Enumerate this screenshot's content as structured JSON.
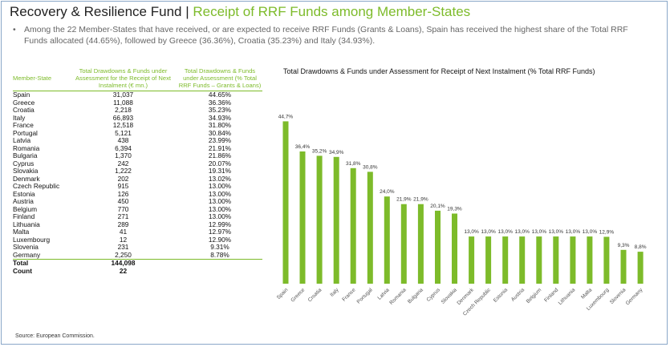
{
  "header": {
    "title_main": "Recovery & Resilience Fund",
    "title_separator": "|",
    "title_accent": "Receipt of RRF Funds among Member-States",
    "bullet": "Among the 22 Member-States that have received, or are expected to receive RRF Funds (Grants & Loans), Spain has received the highest share of the Total RRF Funds allocated (44.65%), followed by Greece (36.36%), Croatia (35.23%) and Italy (34.93%).",
    "accent_color": "#7dbb2a"
  },
  "table": {
    "headers": [
      "Member-State",
      "Total Drawdowns & Funds under Assessment for the Receipt of Next Instalment (€ mn.)",
      "Total Drawdowns & Funds under Assessment (% Total RRF Funds – Grants & Loans)"
    ],
    "rows": [
      [
        "Spain",
        "31,037",
        "44.65%"
      ],
      [
        "Greece",
        "11,088",
        "36.36%"
      ],
      [
        "Croatia",
        "2,218",
        "35.23%"
      ],
      [
        "Italy",
        "66,893",
        "34.93%"
      ],
      [
        "France",
        "12,518",
        "31.80%"
      ],
      [
        "Portugal",
        "5,121",
        "30.84%"
      ],
      [
        "Latvia",
        "438",
        "23.99%"
      ],
      [
        "Romania",
        "6,394",
        "21.91%"
      ],
      [
        "Bulgaria",
        "1,370",
        "21.86%"
      ],
      [
        "Cyprus",
        "242",
        "20.07%"
      ],
      [
        "Slovakia",
        "1,222",
        "19.31%"
      ],
      [
        "Denmark",
        "202",
        "13.02%"
      ],
      [
        "Czech Republic",
        "915",
        "13.00%"
      ],
      [
        "Estonia",
        "126",
        "13.00%"
      ],
      [
        "Austria",
        "450",
        "13.00%"
      ],
      [
        "Belgium",
        "770",
        "13.00%"
      ],
      [
        "Finland",
        "271",
        "13.00%"
      ],
      [
        "Lithuania",
        "289",
        "12.99%"
      ],
      [
        "Malta",
        "41",
        "12.97%"
      ],
      [
        "Luxembourg",
        "12",
        "12.90%"
      ],
      [
        "Slovenia",
        "231",
        "9.31%"
      ],
      [
        "Germany",
        "2,250",
        "8.78%"
      ]
    ],
    "total_label": "Total",
    "total_value": "144,098",
    "count_label": "Count",
    "count_value": "22"
  },
  "source": "Source: European Commission.",
  "chart_data": {
    "type": "bar",
    "title": "Total Drawdowns & Funds under Assessment for  Receipt of Next Instalment (% Total RRF Funds)",
    "categories": [
      "Spain",
      "Greece",
      "Croatia",
      "Italy",
      "France",
      "Portugal",
      "Latvia",
      "Romania",
      "Bulgaria",
      "Cyprus",
      "Slovakia",
      "Denmark",
      "Czech Republic",
      "Estonia",
      "Austria",
      "Belgium",
      "Finland",
      "Lithuania",
      "Malta",
      "Luxembourg",
      "Slovenia",
      "Germany"
    ],
    "values": [
      44.7,
      36.4,
      35.2,
      34.9,
      31.8,
      30.8,
      24.0,
      21.9,
      21.9,
      20.1,
      19.3,
      13.0,
      13.0,
      13.0,
      13.0,
      13.0,
      13.0,
      13.0,
      13.0,
      12.9,
      9.3,
      8.8
    ],
    "value_labels": [
      "44,7%",
      "36,4%",
      "35,2%",
      "34,9%",
      "31,8%",
      "30,8%",
      "24,0%",
      "21,9%",
      "21,9%",
      "20,1%",
      "19,3%",
      "13,0%",
      "13,0%",
      "13,0%",
      "13,0%",
      "13,0%",
      "13,0%",
      "13,0%",
      "13,0%",
      "12,9%",
      "9,3%",
      "8,8%"
    ],
    "ylim": [
      0,
      45
    ],
    "bar_color": "#7dbb2a",
    "grid": false,
    "legend": "none"
  }
}
